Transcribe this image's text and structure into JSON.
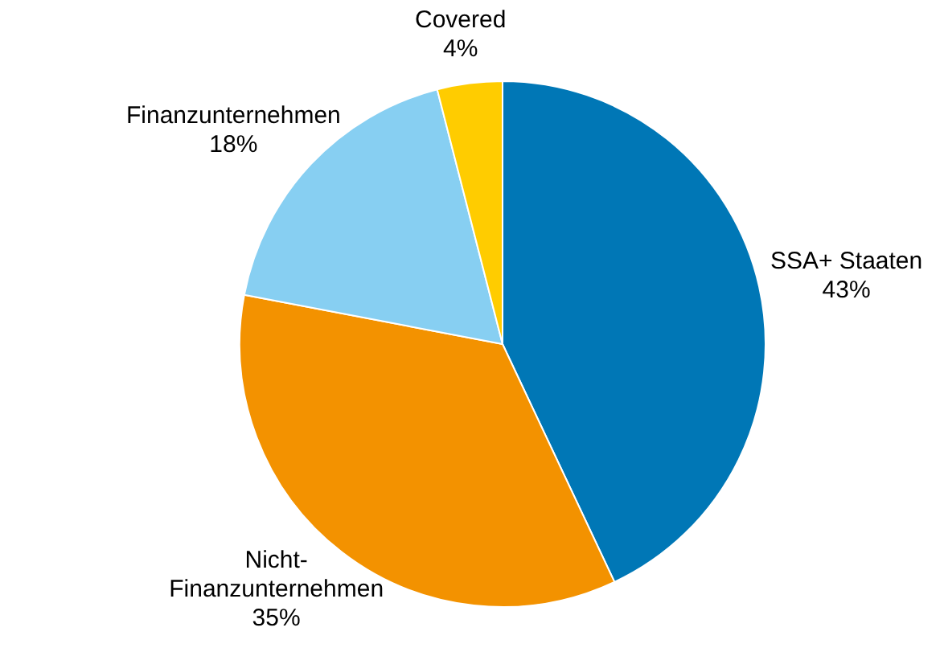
{
  "chart_data": {
    "type": "pie",
    "categories": [
      "SSA+ Staaten",
      "Nicht-Finanzunternehmen",
      "Finanzunternehmen",
      "Covered"
    ],
    "values": [
      43,
      35,
      18,
      4
    ],
    "colors": [
      "#0077b6",
      "#f39200",
      "#87cff2",
      "#ffcc00"
    ],
    "value_labels": [
      "43%",
      "35%",
      "18%",
      "4%"
    ],
    "legend": false
  }
}
